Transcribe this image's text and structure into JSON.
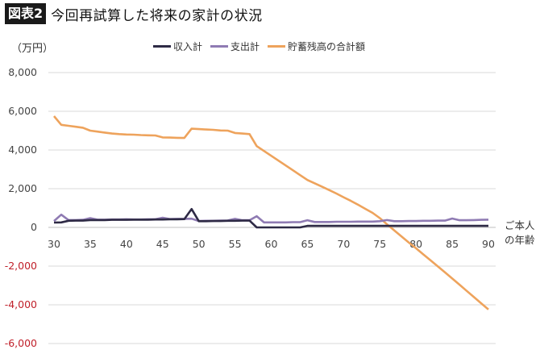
{
  "header": {
    "badge": "図表2",
    "title": "今回再試算した将来の家計の状況"
  },
  "chart_data": {
    "type": "line",
    "title": "今回再試算した将来の家計の状況",
    "xlabel": "ご本人の年齢",
    "ylabel": "（万円）",
    "ylim": [
      -6000,
      8000
    ],
    "xlim": [
      30,
      90
    ],
    "grid": true,
    "legend_position": "top",
    "yticks": [
      "8,000",
      "6,000",
      "4,000",
      "2,000",
      "0",
      "-2,000",
      "-4,000",
      "-6,000"
    ],
    "xticks": [
      "30",
      "35",
      "40",
      "45",
      "50",
      "55",
      "60",
      "65",
      "70",
      "75",
      "80",
      "85",
      "90"
    ],
    "x": [
      30,
      31,
      32,
      33,
      34,
      35,
      36,
      37,
      38,
      39,
      40,
      41,
      42,
      43,
      44,
      45,
      46,
      47,
      48,
      49,
      50,
      51,
      52,
      53,
      54,
      55,
      56,
      57,
      58,
      59,
      60,
      61,
      62,
      63,
      64,
      65,
      66,
      67,
      68,
      69,
      70,
      71,
      72,
      73,
      74,
      75,
      76,
      77,
      78,
      79,
      80,
      81,
      82,
      83,
      84,
      85,
      86,
      87,
      88,
      89,
      90
    ],
    "series": [
      {
        "name": "収入計",
        "color": "#2e2a45",
        "values": [
          250,
          260,
          340,
          350,
          350,
          380,
          380,
          380,
          390,
          390,
          390,
          400,
          400,
          400,
          410,
          410,
          420,
          420,
          430,
          950,
          320,
          320,
          330,
          330,
          340,
          340,
          350,
          350,
          0,
          0,
          0,
          0,
          0,
          0,
          0,
          80,
          80,
          80,
          80,
          80,
          80,
          80,
          80,
          80,
          80,
          80,
          80,
          80,
          80,
          80,
          80,
          80,
          80,
          80,
          80,
          80,
          80,
          80,
          80,
          80,
          80
        ]
      },
      {
        "name": "支出計",
        "color": "#8f7bb3",
        "values": [
          330,
          660,
          380,
          380,
          390,
          480,
          400,
          400,
          410,
          410,
          420,
          410,
          410,
          420,
          420,
          500,
          430,
          440,
          440,
          450,
          330,
          340,
          340,
          350,
          360,
          440,
          370,
          370,
          580,
          260,
          260,
          260,
          260,
          270,
          270,
          370,
          280,
          280,
          280,
          290,
          290,
          290,
          300,
          300,
          300,
          320,
          380,
          320,
          320,
          330,
          330,
          340,
          340,
          350,
          350,
          460,
          370,
          370,
          380,
          390,
          400
        ]
      },
      {
        "name": "貯蓄残高の合計額",
        "color": "#eea35c",
        "values": [
          5750,
          5300,
          5250,
          5200,
          5150,
          5000,
          4950,
          4900,
          4850,
          4820,
          4800,
          4790,
          4770,
          4760,
          4750,
          4650,
          4640,
          4630,
          4620,
          5100,
          5080,
          5060,
          5040,
          5010,
          5000,
          4880,
          4850,
          4820,
          4200,
          3950,
          3700,
          3450,
          3200,
          2950,
          2700,
          2450,
          2280,
          2110,
          1930,
          1750,
          1560,
          1370,
          1170,
          960,
          750,
          480,
          160,
          -160,
          -470,
          -780,
          -1080,
          -1390,
          -1700,
          -2010,
          -2320,
          -2640,
          -2960,
          -3280,
          -3600,
          -3920,
          -4240
        ]
      }
    ]
  },
  "legend": [
    {
      "label": "収入計",
      "color": "#2e2a45"
    },
    {
      "label": "支出計",
      "color": "#8f7bb3"
    },
    {
      "label": "貯蓄残高の合計額",
      "color": "#eea35c"
    }
  ],
  "axis": {
    "unit": "（万円）",
    "x_label_line1": "ご本人",
    "x_label_line2": "の年齢",
    "negative_color": "#c0202a",
    "grid_color": "#d9d9d9"
  }
}
